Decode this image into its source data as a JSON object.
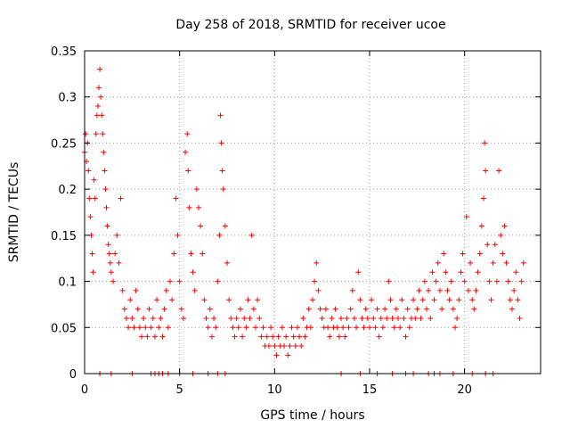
{
  "chart_data": {
    "type": "scatter",
    "title": "Day 258 of 2018, SRMTID for receiver ucoe",
    "xlabel": "GPS time / hours",
    "ylabel": "SRMTID / TECUs",
    "xlim": [
      0,
      24
    ],
    "ylim": [
      0,
      0.35
    ],
    "x_ticks": [
      0,
      5,
      10,
      15,
      20
    ],
    "x_tick_labels": [
      "0",
      "5",
      "10",
      "15",
      "20"
    ],
    "y_ticks": [
      0,
      0.05,
      0.1,
      0.15,
      0.2,
      0.25,
      0.3,
      0.35
    ],
    "y_tick_labels": [
      "0",
      "0.05",
      "0.1",
      "0.15",
      "0.2",
      "0.25",
      "0.3",
      "0.35"
    ],
    "grid": true,
    "marker": "plus",
    "series": [
      {
        "name": "SRMTID",
        "color": "#ff0000",
        "points": [
          [
            0.0,
            0.24
          ],
          [
            0.05,
            0.26
          ],
          [
            0.1,
            0.23
          ],
          [
            0.15,
            0.25
          ],
          [
            0.2,
            0.22
          ],
          [
            0.25,
            0.19
          ],
          [
            0.3,
            0.17
          ],
          [
            0.35,
            0.15
          ],
          [
            0.4,
            0.13
          ],
          [
            0.45,
            0.11
          ],
          [
            0.5,
            0.21
          ],
          [
            0.55,
            0.19
          ],
          [
            0.6,
            0.26
          ],
          [
            0.65,
            0.28
          ],
          [
            0.7,
            0.29
          ],
          [
            0.75,
            0.31
          ],
          [
            0.8,
            0.33
          ],
          [
            0.85,
            0.3
          ],
          [
            0.9,
            0.28
          ],
          [
            0.95,
            0.26
          ],
          [
            1.0,
            0.24
          ],
          [
            1.05,
            0.22
          ],
          [
            1.1,
            0.2
          ],
          [
            1.15,
            0.18
          ],
          [
            1.2,
            0.16
          ],
          [
            1.25,
            0.14
          ],
          [
            1.3,
            0.13
          ],
          [
            1.35,
            0.12
          ],
          [
            1.4,
            0.11
          ],
          [
            1.5,
            0.1
          ],
          [
            1.6,
            0.13
          ],
          [
            1.7,
            0.15
          ],
          [
            1.8,
            0.12
          ],
          [
            1.9,
            0.19
          ],
          [
            2.0,
            0.09
          ],
          [
            2.1,
            0.07
          ],
          [
            2.2,
            0.06
          ],
          [
            2.3,
            0.05
          ],
          [
            2.4,
            0.08
          ],
          [
            2.5,
            0.06
          ],
          [
            2.6,
            0.05
          ],
          [
            2.7,
            0.09
          ],
          [
            2.8,
            0.07
          ],
          [
            2.9,
            0.05
          ],
          [
            3.0,
            0.04
          ],
          [
            3.1,
            0.06
          ],
          [
            3.2,
            0.05
          ],
          [
            3.3,
            0.04
          ],
          [
            3.4,
            0.07
          ],
          [
            3.5,
            0.05
          ],
          [
            3.6,
            0.06
          ],
          [
            3.7,
            0.04
          ],
          [
            3.8,
            0.08
          ],
          [
            3.9,
            0.05
          ],
          [
            4.0,
            0.06
          ],
          [
            4.1,
            0.04
          ],
          [
            4.2,
            0.07
          ],
          [
            4.3,
            0.09
          ],
          [
            4.4,
            0.05
          ],
          [
            4.5,
            0.1
          ],
          [
            4.6,
            0.08
          ],
          [
            4.7,
            0.13
          ],
          [
            4.8,
            0.19
          ],
          [
            4.9,
            0.15
          ],
          [
            5.0,
            0.1
          ],
          [
            5.1,
            0.07
          ],
          [
            5.2,
            0.06
          ],
          [
            5.3,
            0.24
          ],
          [
            5.4,
            0.26
          ],
          [
            5.45,
            0.22
          ],
          [
            5.5,
            0.18
          ],
          [
            5.6,
            0.13
          ],
          [
            5.7,
            0.11
          ],
          [
            5.8,
            0.09
          ],
          [
            5.9,
            0.2
          ],
          [
            6.0,
            0.18
          ],
          [
            6.1,
            0.16
          ],
          [
            6.2,
            0.13
          ],
          [
            6.3,
            0.08
          ],
          [
            6.4,
            0.06
          ],
          [
            6.5,
            0.05
          ],
          [
            6.6,
            0.07
          ],
          [
            6.7,
            0.04
          ],
          [
            6.8,
            0.06
          ],
          [
            6.9,
            0.05
          ],
          [
            7.0,
            0.1
          ],
          [
            7.1,
            0.15
          ],
          [
            7.15,
            0.28
          ],
          [
            7.2,
            0.25
          ],
          [
            7.25,
            0.22
          ],
          [
            7.3,
            0.2
          ],
          [
            7.4,
            0.16
          ],
          [
            7.5,
            0.12
          ],
          [
            7.6,
            0.08
          ],
          [
            7.7,
            0.06
          ],
          [
            7.8,
            0.05
          ],
          [
            7.9,
            0.04
          ],
          [
            8.0,
            0.06
          ],
          [
            8.1,
            0.05
          ],
          [
            8.2,
            0.07
          ],
          [
            8.3,
            0.04
          ],
          [
            8.4,
            0.06
          ],
          [
            8.5,
            0.05
          ],
          [
            8.6,
            0.08
          ],
          [
            8.7,
            0.06
          ],
          [
            8.8,
            0.15
          ],
          [
            8.9,
            0.07
          ],
          [
            9.0,
            0.05
          ],
          [
            9.1,
            0.08
          ],
          [
            9.2,
            0.06
          ],
          [
            9.3,
            0.04
          ],
          [
            9.4,
            0.05
          ],
          [
            9.5,
            0.03
          ],
          [
            9.6,
            0.04
          ],
          [
            9.7,
            0.03
          ],
          [
            9.8,
            0.05
          ],
          [
            9.9,
            0.04
          ],
          [
            10.0,
            0.03
          ],
          [
            10.1,
            0.02
          ],
          [
            10.2,
            0.04
          ],
          [
            10.3,
            0.03
          ],
          [
            10.4,
            0.05
          ],
          [
            10.5,
            0.03
          ],
          [
            10.6,
            0.04
          ],
          [
            10.7,
            0.02
          ],
          [
            10.8,
            0.03
          ],
          [
            10.9,
            0.05
          ],
          [
            11.0,
            0.04
          ],
          [
            11.1,
            0.03
          ],
          [
            11.2,
            0.05
          ],
          [
            11.3,
            0.04
          ],
          [
            11.4,
            0.03
          ],
          [
            11.5,
            0.06
          ],
          [
            11.6,
            0.04
          ],
          [
            11.7,
            0.05
          ],
          [
            11.8,
            0.07
          ],
          [
            11.9,
            0.05
          ],
          [
            12.0,
            0.08
          ],
          [
            12.1,
            0.1
          ],
          [
            12.2,
            0.12
          ],
          [
            12.3,
            0.09
          ],
          [
            12.4,
            0.07
          ],
          [
            12.5,
            0.06
          ],
          [
            12.6,
            0.05
          ],
          [
            12.7,
            0.07
          ],
          [
            12.8,
            0.05
          ],
          [
            12.9,
            0.04
          ],
          [
            13.0,
            0.06
          ],
          [
            13.1,
            0.05
          ],
          [
            13.2,
            0.07
          ],
          [
            13.3,
            0.05
          ],
          [
            13.4,
            0.04
          ],
          [
            13.5,
            0.06
          ],
          [
            13.6,
            0.05
          ],
          [
            13.7,
            0.04
          ],
          [
            13.8,
            0.06
          ],
          [
            13.9,
            0.05
          ],
          [
            14.0,
            0.07
          ],
          [
            14.1,
            0.09
          ],
          [
            14.2,
            0.06
          ],
          [
            14.3,
            0.05
          ],
          [
            14.4,
            0.11
          ],
          [
            14.5,
            0.08
          ],
          [
            14.6,
            0.06
          ],
          [
            14.7,
            0.05
          ],
          [
            14.8,
            0.07
          ],
          [
            14.9,
            0.06
          ],
          [
            15.0,
            0.05
          ],
          [
            15.1,
            0.08
          ],
          [
            15.2,
            0.06
          ],
          [
            15.3,
            0.05
          ],
          [
            15.4,
            0.07
          ],
          [
            15.5,
            0.04
          ],
          [
            15.6,
            0.06
          ],
          [
            15.7,
            0.05
          ],
          [
            15.8,
            0.07
          ],
          [
            15.9,
            0.06
          ],
          [
            16.0,
            0.1
          ],
          [
            16.1,
            0.08
          ],
          [
            16.2,
            0.06
          ],
          [
            16.3,
            0.05
          ],
          [
            16.4,
            0.07
          ],
          [
            16.5,
            0.06
          ],
          [
            16.6,
            0.05
          ],
          [
            16.7,
            0.08
          ],
          [
            16.8,
            0.06
          ],
          [
            16.9,
            0.04
          ],
          [
            17.0,
            0.07
          ],
          [
            17.1,
            0.05
          ],
          [
            17.2,
            0.06
          ],
          [
            17.3,
            0.08
          ],
          [
            17.4,
            0.06
          ],
          [
            17.5,
            0.07
          ],
          [
            17.6,
            0.09
          ],
          [
            17.7,
            0.06
          ],
          [
            17.8,
            0.08
          ],
          [
            17.9,
            0.1
          ],
          [
            18.0,
            0.07
          ],
          [
            18.1,
            0.09
          ],
          [
            18.2,
            0.06
          ],
          [
            18.3,
            0.11
          ],
          [
            18.4,
            0.08
          ],
          [
            18.5,
            0.1
          ],
          [
            18.6,
            0.12
          ],
          [
            18.7,
            0.09
          ],
          [
            18.8,
            0.07
          ],
          [
            18.9,
            0.13
          ],
          [
            19.0,
            0.11
          ],
          [
            19.1,
            0.09
          ],
          [
            19.2,
            0.08
          ],
          [
            19.3,
            0.1
          ],
          [
            19.4,
            0.07
          ],
          [
            19.5,
            0.05
          ],
          [
            19.6,
            0.06
          ],
          [
            19.7,
            0.08
          ],
          [
            19.8,
            0.11
          ],
          [
            19.9,
            0.13
          ],
          [
            20.0,
            0.1
          ],
          [
            20.1,
            0.17
          ],
          [
            20.2,
            0.09
          ],
          [
            20.3,
            0.12
          ],
          [
            20.4,
            0.08
          ],
          [
            20.5,
            0.07
          ],
          [
            20.6,
            0.09
          ],
          [
            20.7,
            0.11
          ],
          [
            20.8,
            0.13
          ],
          [
            20.9,
            0.16
          ],
          [
            21.0,
            0.19
          ],
          [
            21.05,
            0.25
          ],
          [
            21.1,
            0.22
          ],
          [
            21.2,
            0.14
          ],
          [
            21.3,
            0.1
          ],
          [
            21.4,
            0.08
          ],
          [
            21.5,
            0.12
          ],
          [
            21.6,
            0.14
          ],
          [
            21.7,
            0.1
          ],
          [
            21.8,
            0.22
          ],
          [
            21.9,
            0.15
          ],
          [
            22.0,
            0.13
          ],
          [
            22.1,
            0.16
          ],
          [
            22.2,
            0.12
          ],
          [
            22.3,
            0.1
          ],
          [
            22.4,
            0.08
          ],
          [
            22.5,
            0.07
          ],
          [
            22.6,
            0.09
          ],
          [
            22.7,
            0.11
          ],
          [
            22.8,
            0.08
          ],
          [
            22.9,
            0.06
          ],
          [
            23.0,
            0.1
          ],
          [
            23.1,
            0.12
          ]
        ]
      }
    ],
    "zero_points": [
      0.8,
      1.4,
      2.5,
      3.5,
      3.7,
      3.9,
      4.1,
      4.4,
      5.0,
      5.7,
      6.5,
      7.0,
      7.4,
      13.5,
      14.5,
      15.4,
      16.2,
      16.9,
      17.3,
      18.1,
      18.4,
      18.7,
      19.4,
      20.4,
      21.1,
      21.5
    ]
  }
}
